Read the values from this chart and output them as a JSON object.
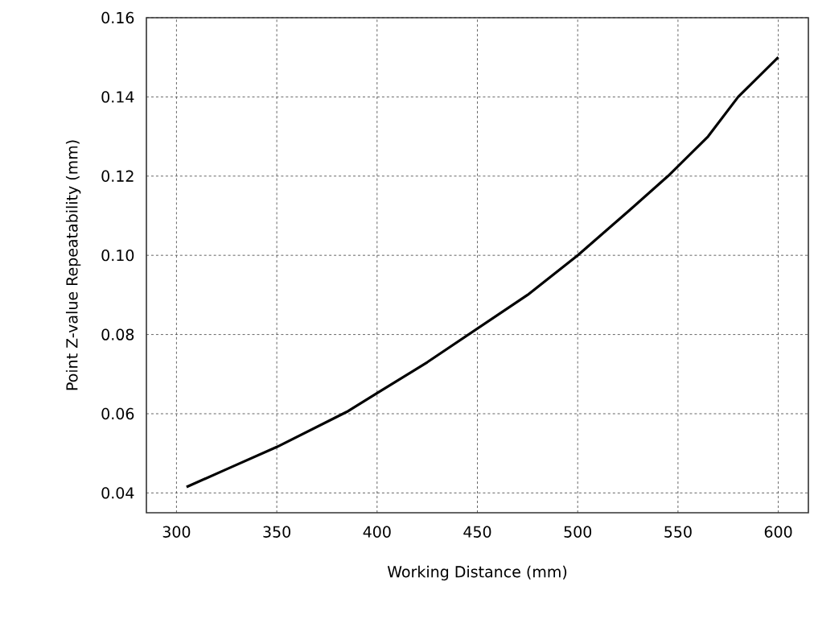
{
  "chart_data": {
    "type": "line",
    "xlabel": "Working Distance (mm)",
    "ylabel": "Point Z-value Repeatability (mm)",
    "x": [
      305,
      325,
      350,
      385,
      400,
      425,
      450,
      475,
      500,
      525,
      545,
      565,
      580,
      600
    ],
    "series": [
      {
        "color": "#000000",
        "values": [
          0.0415,
          0.046,
          0.0516,
          0.0605,
          0.0652,
          0.073,
          0.0815,
          0.09,
          0.1,
          0.111,
          0.12,
          0.13,
          0.14,
          0.15
        ]
      }
    ],
    "xlim": [
      285,
      615
    ],
    "ylim": [
      0.035,
      0.16
    ],
    "xticks": [
      300,
      350,
      400,
      450,
      500,
      550,
      600
    ],
    "yticks": [
      {
        "value": 0.04,
        "label": "0.04"
      },
      {
        "value": 0.06,
        "label": "0.06"
      },
      {
        "value": 0.08,
        "label": "0.08"
      },
      {
        "value": 0.1,
        "label": "0.10"
      },
      {
        "value": 0.12,
        "label": "0.12"
      },
      {
        "value": 0.14,
        "label": "0.14"
      },
      {
        "value": 0.16,
        "label": "0.16"
      }
    ],
    "grid": true,
    "marker": "none",
    "line_style": "solid"
  }
}
